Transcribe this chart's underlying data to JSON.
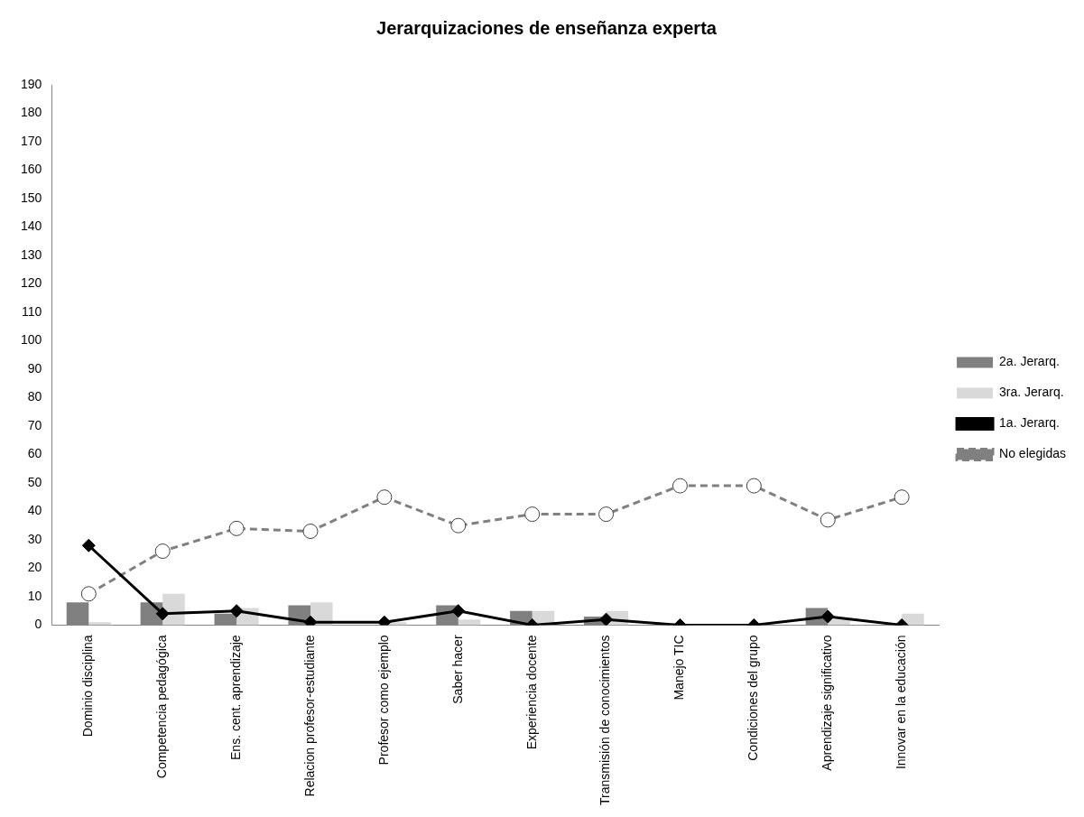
{
  "chart_data": {
    "type": "bar",
    "title": "Jerarquizaciones de enseñanza experta",
    "categories": [
      "Dominio disciplina",
      "Competencia pedagógica",
      "Ens. cent. aprendizaje",
      "Relacion profesor-estudiante",
      "Profesor como ejemplo",
      "Saber hacer",
      "Experiencia docente",
      "Transmisión de conocimientos",
      "Manejo TIC",
      "Condiciones del grupo",
      "Aprendizaje significativo",
      "Innovar en la educación"
    ],
    "series": [
      {
        "name": "2a. Jerarq.",
        "color": "#808080",
        "values": [
          8,
          8,
          4,
          7,
          0,
          7,
          5,
          3,
          0,
          0,
          6,
          0
        ]
      },
      {
        "name": "3ra. Jerarq.",
        "color": "#d9d9d9",
        "values": [
          1,
          11,
          6,
          8,
          1,
          2,
          5,
          5,
          0,
          0,
          2,
          4
        ]
      },
      {
        "name": "1a. Jerarq.",
        "type": "line",
        "color": "#000000",
        "marker": "diamond",
        "line_style": "solid",
        "values": [
          28,
          4,
          5,
          1,
          1,
          5,
          0,
          2,
          0,
          0,
          3,
          0
        ]
      },
      {
        "name": "No elegidas",
        "type": "line",
        "color": "#808080",
        "marker": "circle",
        "line_style": "dashed",
        "values": [
          11,
          26,
          34,
          33,
          45,
          35,
          39,
          39,
          49,
          49,
          37,
          45
        ]
      }
    ],
    "ylim": [
      0,
      190
    ],
    "yticks": [
      0,
      10,
      20,
      30,
      40,
      50,
      60,
      70,
      80,
      90,
      100,
      110,
      120,
      130,
      140,
      150,
      160,
      170,
      180,
      190
    ],
    "grid": false,
    "legend": "right"
  }
}
